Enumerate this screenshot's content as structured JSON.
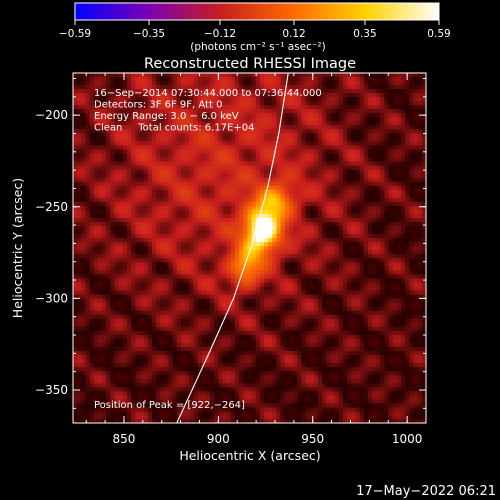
{
  "chart_data": {
    "type": "heatmap",
    "title": "Reconstructed RHESSI Image",
    "xlabel": "Heliocentric X (arcsec)",
    "ylabel": "Heliocentric Y (arcsec)",
    "xlim": [
      823,
      1010
    ],
    "ylim": [
      -368,
      -177
    ],
    "x_ticks": [
      850,
      900,
      950,
      1000
    ],
    "y_ticks": [
      -350,
      -300,
      -250,
      -200
    ],
    "x_tick_labels": [
      "850",
      "900",
      "950",
      "1000"
    ],
    "y_tick_labels": [
      "−350",
      "−300",
      "−250",
      "−200"
    ],
    "colorbar": {
      "range": [
        -0.59,
        0.59
      ],
      "tick_values": [
        -0.59,
        -0.35,
        -0.12,
        0.12,
        0.35,
        0.59
      ],
      "tick_labels": [
        "−0.59",
        "−0.35",
        "−0.12",
        "0.12",
        "0.35",
        "0.59"
      ],
      "units": "(photons cm⁻² s⁻¹ asec⁻²)",
      "colormap": [
        "#0000ff",
        "#7a00b4",
        "#c81e1e",
        "#ff6a00",
        "#ffd200",
        "#ffffff"
      ]
    },
    "annotations": [
      "16−Sep−2014 07:30:44.000 to 07:36:44.000",
      "Detectors: 3F 6F 9F, Att 0",
      "Energy Range: 3.0 − 6.0 keV",
      "Clean     Total counts: 6.17E+04"
    ],
    "peak_label": "Position of Peak = [922,−264]",
    "peak": [
      922,
      -264
    ],
    "limb_curve": [
      [
        878,
        -368
      ],
      [
        895,
        -330
      ],
      [
        908,
        -300
      ],
      [
        918,
        -270
      ],
      [
        926,
        -240
      ],
      [
        932,
        -210
      ],
      [
        937,
        -177
      ]
    ],
    "sources": [
      {
        "x": 922,
        "y": -264,
        "sigma_x": 7,
        "sigma_y": 9,
        "amp": 0.59
      },
      {
        "x": 913,
        "y": -284,
        "sigma_x": 6,
        "sigma_y": 7,
        "amp": 0.33
      },
      {
        "x": 930,
        "y": -247,
        "sigma_x": 7,
        "sigma_y": 7,
        "amp": 0.28
      },
      {
        "x": 900,
        "y": -230,
        "sigma_x": 45,
        "sigma_y": 50,
        "amp": 0.12
      }
    ]
  },
  "timestamp": "17−May−2022 06:21"
}
